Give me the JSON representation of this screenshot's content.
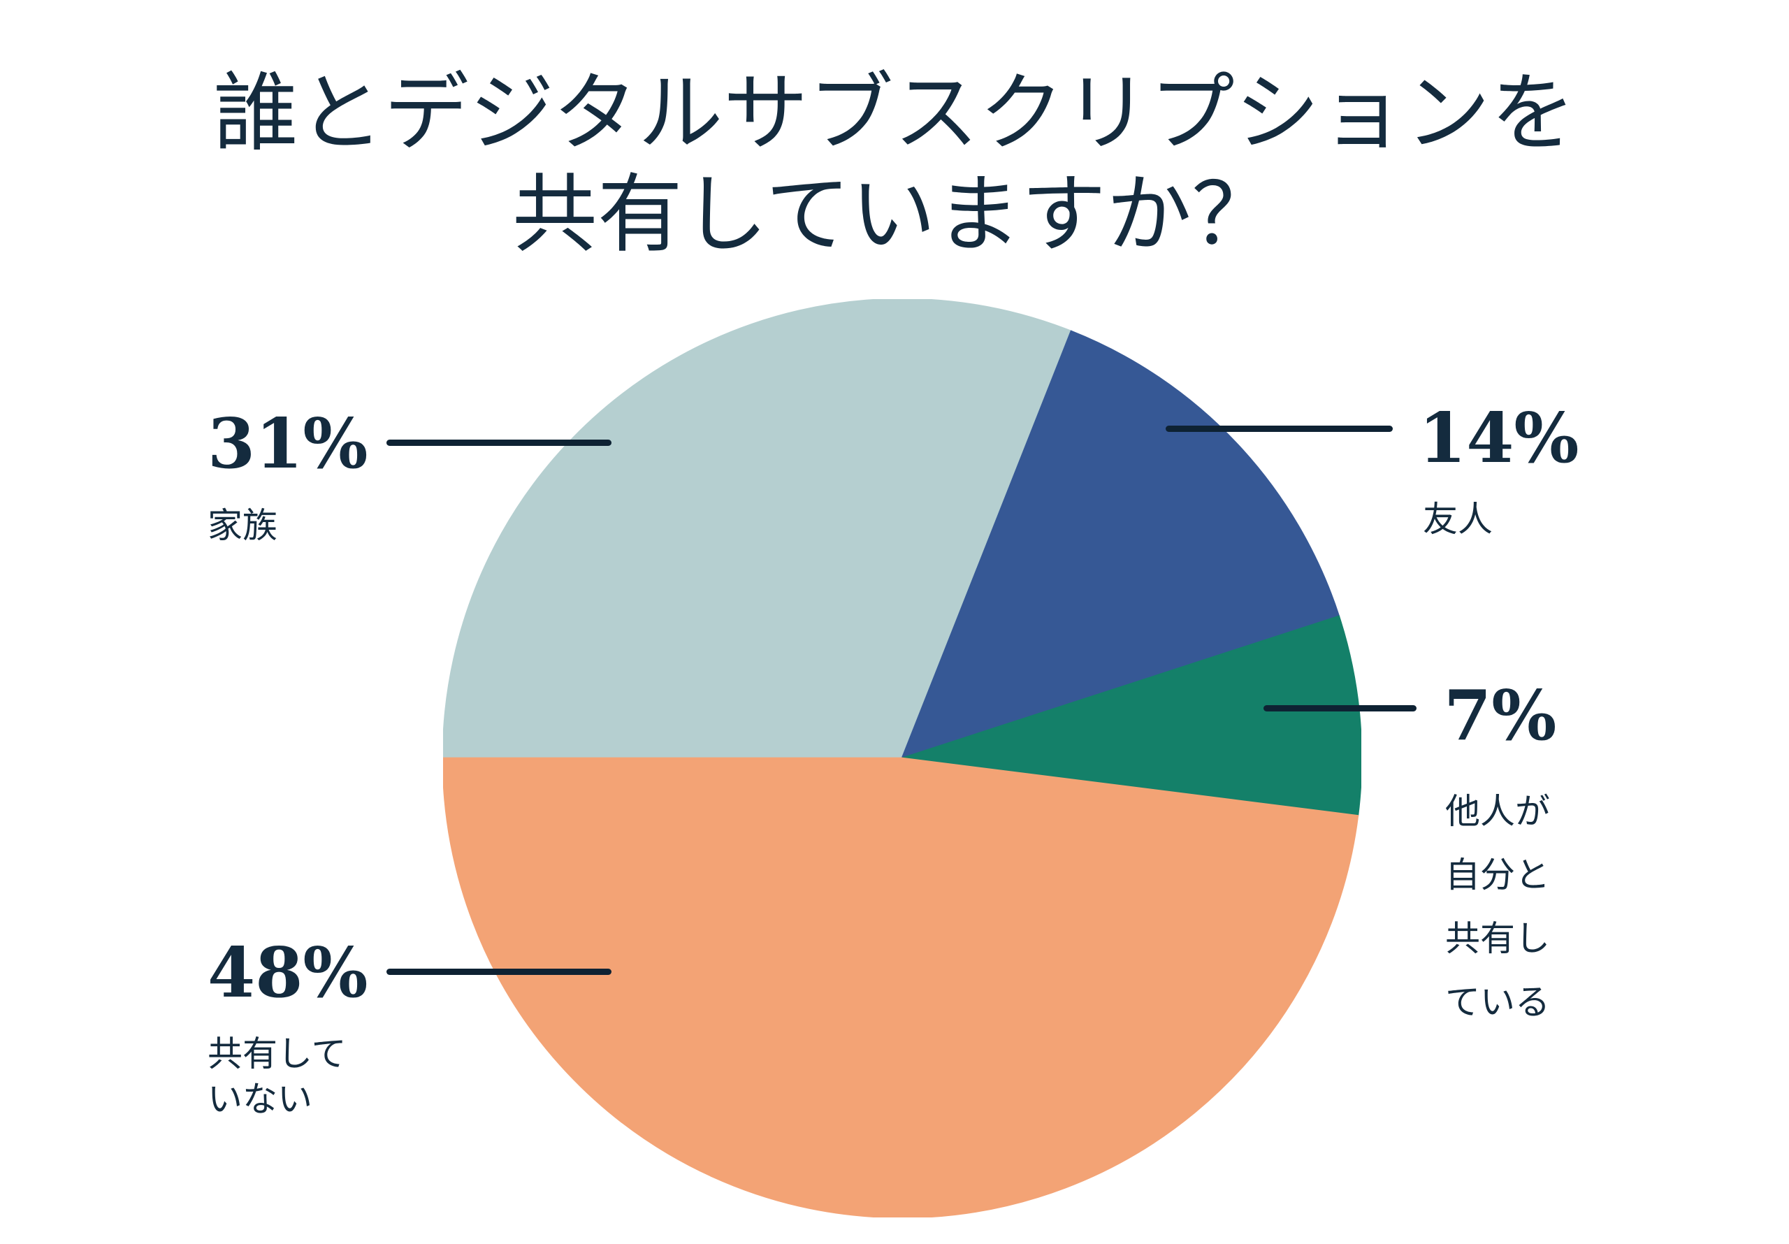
{
  "title": {
    "line1": "誰とデジタルサブスクリプションを",
    "line2": "共有していますか？"
  },
  "colors": {
    "background": "#FFFFFF",
    "text_navy": "#142B3E",
    "leader_line": "#0E2233",
    "slice_family": "#B5CFD0",
    "slice_friends": "#365895",
    "slice_others": "#148069",
    "slice_none": "#F3A375"
  },
  "chart_data": {
    "type": "pie",
    "title": "誰とデジタルサブスクリプションを共有していますか？",
    "start_angle_deg": 270,
    "direction": "clockwise",
    "legend_position": "callouts",
    "slices": [
      {
        "label": "家族",
        "value_pct": 31,
        "display_value": "31%",
        "color": "#B5CFD0",
        "callout_side": "left"
      },
      {
        "label": "友人",
        "value_pct": 14,
        "display_value": "14%",
        "color": "#365895",
        "callout_side": "right"
      },
      {
        "label": "他人が自分と\n共有している",
        "value_pct": 7,
        "display_value": "7%",
        "color": "#148069",
        "callout_side": "right"
      },
      {
        "label": "共有していない",
        "value_pct": 48,
        "display_value": "48%",
        "color": "#F3A375",
        "callout_side": "left"
      }
    ]
  }
}
